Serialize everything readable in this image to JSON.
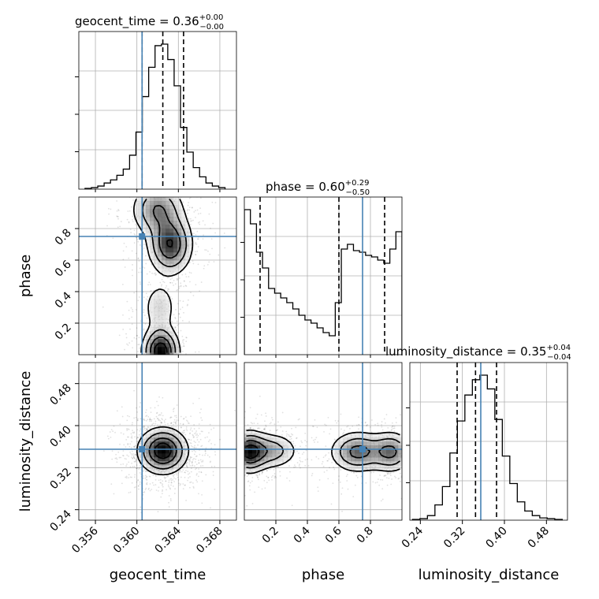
{
  "chart_data": {
    "type": "corner",
    "parameters": [
      {
        "name": "geocent_time",
        "label": "geocent_time",
        "range": [
          0.3544,
          0.3696
        ],
        "ticks": [
          0.356,
          0.36,
          0.364,
          0.368
        ],
        "tick_labels": [
          "0.356",
          "0.360",
          "0.364",
          "0.368"
        ],
        "truth": 0.3605,
        "title": {
          "param": "geocent_time",
          "median": "0.36",
          "plus": "+0.00",
          "minus": "−0.00"
        },
        "quantiles": [
          0.3605,
          0.3625,
          0.3645
        ]
      },
      {
        "name": "phase",
        "label": "phase",
        "range": [
          0.0,
          1.0
        ],
        "ticks": [
          0.2,
          0.4,
          0.6,
          0.8
        ],
        "tick_labels": [
          "0.2",
          "0.4",
          "0.6",
          "0.8"
        ],
        "truth": 0.75,
        "title": {
          "param": "phase",
          "median": "0.60",
          "plus": "+0.29",
          "minus": "−0.50"
        },
        "quantiles": [
          0.1,
          0.6,
          0.89
        ]
      },
      {
        "name": "luminosity_distance",
        "label": "luminosity_distance",
        "range": [
          0.22,
          0.52
        ],
        "ticks": [
          0.24,
          0.32,
          0.4,
          0.48
        ],
        "tick_labels": [
          "0.24",
          "0.32",
          "0.40",
          "0.48"
        ],
        "truth": 0.355,
        "title": {
          "param": "luminosity_distance",
          "median": "0.35",
          "plus": "+0.04",
          "minus": "−0.04"
        },
        "quantiles": [
          0.31,
          0.345,
          0.385
        ]
      }
    ],
    "histograms": [
      {
        "param": "geocent_time",
        "counts": [
          0.5,
          1,
          2,
          4,
          6,
          9,
          13,
          22,
          37,
          60,
          79,
          93,
          94,
          84,
          67,
          40,
          24,
          14,
          8,
          4,
          2,
          1
        ]
      },
      {
        "param": "phase",
        "counts": [
          0.92,
          0.83,
          0.65,
          0.55,
          0.42,
          0.39,
          0.36,
          0.33,
          0.29,
          0.25,
          0.22,
          0.2,
          0.17,
          0.14,
          0.12,
          0.33,
          0.67,
          0.7,
          0.66,
          0.65,
          0.63,
          0.62,
          0.6,
          0.58,
          0.67,
          0.78
        ]
      },
      {
        "param": "luminosity_distance",
        "counts": [
          0.5,
          1,
          3,
          10,
          22,
          44,
          65,
          82,
          92,
          95,
          86,
          66,
          42,
          24,
          12,
          6,
          3,
          1.5,
          1,
          0.5
        ]
      }
    ],
    "pairs": [
      {
        "x": "geocent_time",
        "y": "phase",
        "density_blobs": [
          {
            "cx": 0.3623,
            "cy": 0.02,
            "sx": 0.0009,
            "sy": 0.08,
            "w": 1.0
          },
          {
            "cx": 0.3632,
            "cy": 0.7,
            "sx": 0.0011,
            "sy": 0.1,
            "w": 0.8
          },
          {
            "cx": 0.362,
            "cy": 0.92,
            "sx": 0.0013,
            "sy": 0.09,
            "w": 0.55
          },
          {
            "cx": 0.3622,
            "cy": 0.3,
            "sx": 0.0009,
            "sy": 0.09,
            "w": 0.25
          }
        ]
      },
      {
        "x": "geocent_time",
        "y": "luminosity_distance",
        "density_blobs": [
          {
            "cx": 0.3625,
            "cy": 0.352,
            "sx": 0.0012,
            "sy": 0.022,
            "w": 1.0
          }
        ]
      },
      {
        "x": "phase",
        "y": "luminosity_distance",
        "density_blobs": [
          {
            "cx": 0.03,
            "cy": 0.35,
            "sx": 0.06,
            "sy": 0.02,
            "w": 1.0
          },
          {
            "cx": 0.17,
            "cy": 0.352,
            "sx": 0.09,
            "sy": 0.018,
            "w": 0.5
          },
          {
            "cx": 0.72,
            "cy": 0.35,
            "sx": 0.09,
            "sy": 0.02,
            "w": 0.75
          },
          {
            "cx": 0.93,
            "cy": 0.35,
            "sx": 0.07,
            "sy": 0.02,
            "w": 0.7
          }
        ]
      }
    ],
    "truth_color": "#4682b4",
    "contour_color": "#000000",
    "grid": true
  }
}
